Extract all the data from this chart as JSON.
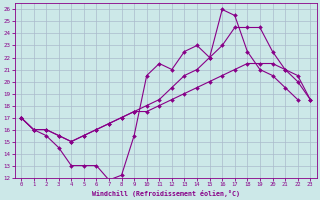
{
  "xlabel": "Windchill (Refroidissement éolien,°C)",
  "bg_color": "#cce8e8",
  "grid_color": "#aabbcc",
  "line_color": "#880088",
  "xlim": [
    -0.5,
    23.5
  ],
  "ylim": [
    12,
    26.5
  ],
  "xticks": [
    0,
    1,
    2,
    3,
    4,
    5,
    6,
    7,
    8,
    9,
    10,
    11,
    12,
    13,
    14,
    15,
    16,
    17,
    18,
    19,
    20,
    21,
    22,
    23
  ],
  "yticks": [
    12,
    13,
    14,
    15,
    16,
    17,
    18,
    19,
    20,
    21,
    22,
    23,
    24,
    25,
    26
  ],
  "wavy_x": [
    0,
    1,
    2,
    3,
    4,
    5,
    6,
    7,
    8,
    9,
    10,
    11,
    12,
    13,
    14,
    15,
    16,
    17,
    18,
    19,
    20,
    21,
    22
  ],
  "wavy_y": [
    17.0,
    16.0,
    15.5,
    14.5,
    13.0,
    13.0,
    13.0,
    11.8,
    12.2,
    15.5,
    20.5,
    21.5,
    21.0,
    22.5,
    23.0,
    22.0,
    26.0,
    25.5,
    22.5,
    21.0,
    20.5,
    19.5,
    18.5
  ],
  "upper_x": [
    0,
    1,
    2,
    3,
    4,
    5,
    6,
    7,
    8,
    9,
    10,
    11,
    12,
    13,
    14,
    15,
    16,
    17,
    18,
    19,
    20,
    21,
    22,
    23
  ],
  "upper_y": [
    17.0,
    16.0,
    16.0,
    15.5,
    15.0,
    15.5,
    16.0,
    16.5,
    17.0,
    17.5,
    18.0,
    18.5,
    19.5,
    20.5,
    21.0,
    22.0,
    23.0,
    24.5,
    24.5,
    24.5,
    22.5,
    21.0,
    20.5,
    18.5
  ],
  "lower_x": [
    0,
    1,
    2,
    3,
    4,
    5,
    6,
    7,
    8,
    9,
    10,
    11,
    12,
    13,
    14,
    15,
    16,
    17,
    18,
    19,
    20,
    21,
    22,
    23
  ],
  "lower_y": [
    17.0,
    16.0,
    16.0,
    15.5,
    15.0,
    15.5,
    16.0,
    16.5,
    17.0,
    17.5,
    17.5,
    18.0,
    18.5,
    19.0,
    19.5,
    20.0,
    20.5,
    21.0,
    21.5,
    21.5,
    21.5,
    21.0,
    20.0,
    18.5
  ],
  "marker": "D",
  "marker_size": 2.0,
  "line_width": 0.8
}
